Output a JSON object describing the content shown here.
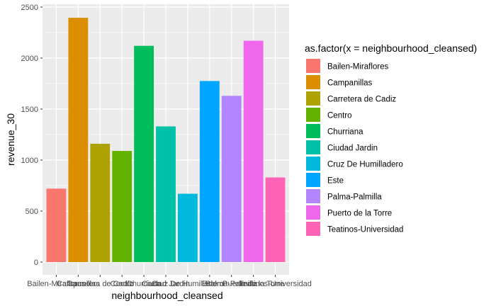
{
  "chart_data": {
    "type": "bar",
    "xlabel": "neighbourhood_cleansed",
    "ylabel": "revenue_30",
    "ylim": [
      -100,
      2500
    ],
    "yticks": [
      0,
      500,
      1000,
      1500,
      2000,
      2500
    ],
    "grid": true,
    "legend_position": "right",
    "legend_title": "as.factor(x = neighbourhood_cleansed)",
    "categories": [
      "Bailen-Miraflores",
      "Campanillas",
      "Carretera de Cadiz",
      "Centro",
      "Churriana",
      "Ciudad Jardin",
      "Cruz De Humilladero",
      "Este",
      "Palma-Palmilla",
      "Puerto de la Torre",
      "Teatinos-Universidad"
    ],
    "values": [
      720,
      2395,
      1160,
      1090,
      2120,
      1330,
      670,
      1775,
      1630,
      2170,
      830
    ],
    "colors": [
      "#F8766D",
      "#DB8E00",
      "#AEA200",
      "#64B200",
      "#00BD5C",
      "#00C1A7",
      "#00BADE",
      "#00A6FF",
      "#B385FF",
      "#EF67EB",
      "#FF63B6"
    ]
  }
}
